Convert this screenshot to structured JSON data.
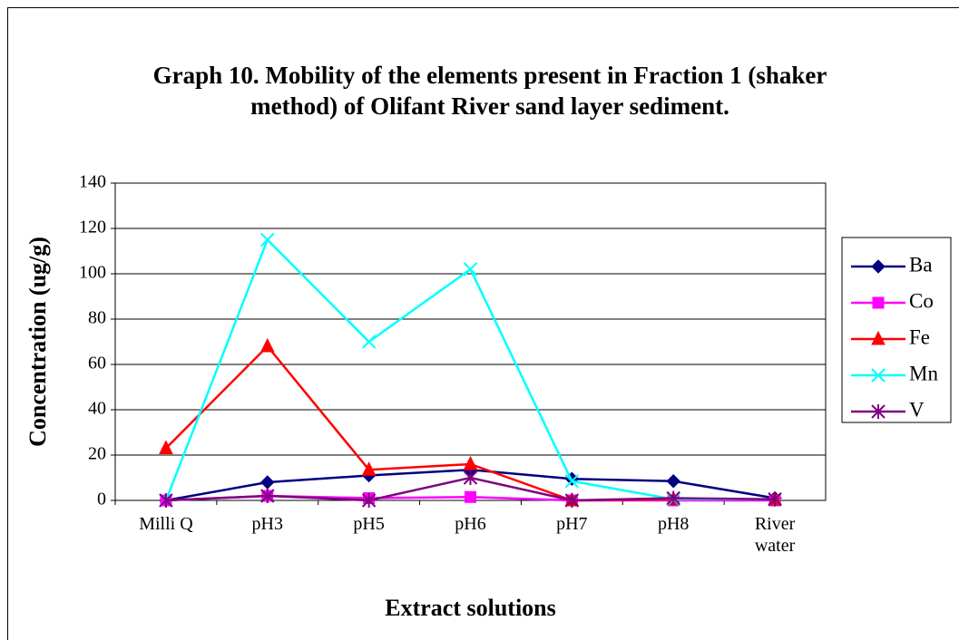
{
  "chart_data": {
    "type": "line",
    "title": "Graph 10. Mobility of the elements present in Fraction 1 (shaker method) of Olifant River sand layer sediment.",
    "x_label": "Extract solutions",
    "y_label": "Concentration (ug/g)",
    "categories": [
      "Milli Q",
      "pH3",
      "pH5",
      "pH6",
      "pH7",
      "pH8",
      "River water"
    ],
    "series": [
      {
        "name": "Ba",
        "color": "#000080",
        "marker": "diamond",
        "values": [
          0,
          8,
          11,
          13.5,
          9.5,
          8.5,
          1
        ]
      },
      {
        "name": "Co",
        "color": "#ff00ff",
        "marker": "square",
        "values": [
          0,
          2,
          1,
          1.5,
          0,
          0,
          0
        ]
      },
      {
        "name": "Fe",
        "color": "#ff0000",
        "marker": "triangle",
        "values": [
          23,
          68,
          13.5,
          16,
          0,
          0.5,
          0.5
        ]
      },
      {
        "name": "Mn",
        "color": "#00ffff",
        "marker": "x",
        "values": [
          0,
          115,
          70,
          102,
          8.5,
          0.5,
          0.5
        ]
      },
      {
        "name": "V",
        "color": "#800080",
        "marker": "star",
        "values": [
          0,
          2,
          0,
          10,
          0,
          1,
          0.5
        ]
      }
    ],
    "ylim": [
      0,
      140
    ],
    "yticks": [
      0,
      20,
      40,
      60,
      80,
      100,
      120,
      140
    ],
    "grid": true,
    "legend": "right"
  }
}
